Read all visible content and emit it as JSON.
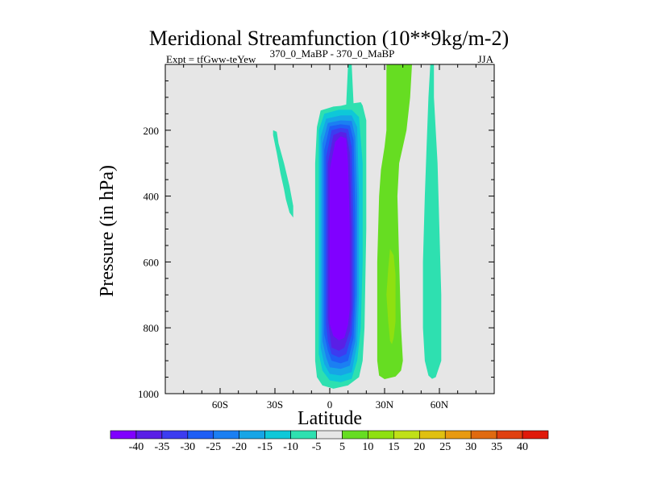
{
  "chart_data": {
    "type": "contour",
    "title": "Meridional Streamfunction (10**9kg/m-2)",
    "subtitle_left": "Expt = tfGww-teYew",
    "subtitle_center": "370_0_MaBP - 370_0_MaBP",
    "subtitle_right": "JJA",
    "xlabel": "Latitude",
    "ylabel": "Pressure (in hPa)",
    "xlim": [
      -90,
      90
    ],
    "ylim": [
      1000,
      0
    ],
    "xticks": [
      {
        "value": -60,
        "label": "60S"
      },
      {
        "value": -30,
        "label": "30S"
      },
      {
        "value": 0,
        "label": "0"
      },
      {
        "value": 30,
        "label": "30N"
      },
      {
        "value": 60,
        "label": "60N"
      }
    ],
    "yticks": [
      {
        "value": 200,
        "label": "200"
      },
      {
        "value": 400,
        "label": "400"
      },
      {
        "value": 600,
        "label": "600"
      },
      {
        "value": 800,
        "label": "800"
      },
      {
        "value": 1000,
        "label": "1000"
      }
    ],
    "background_color": "#e6e6e6",
    "colorbar": {
      "labels": [
        "-40",
        "-35",
        "-30",
        "-25",
        "-20",
        "-15",
        "-10",
        "-5",
        "5",
        "10",
        "15",
        "20",
        "25",
        "30",
        "35",
        "40"
      ],
      "colors": [
        "#8000ff",
        "#5a1fe6",
        "#3c3cf0",
        "#1e5ef5",
        "#1b7ff2",
        "#16a5e6",
        "#0ec8d8",
        "#2ee0b0",
        "#e6e6e6",
        "#66dd22",
        "#8fe010",
        "#c0e018",
        "#e0c010",
        "#e89a10",
        "#e06a10",
        "#e04010",
        "#e01a0a"
      ]
    },
    "regions": [
      {
        "name": "neg-5-strip",
        "fill": "#2ee0b0",
        "points": [
          [
            -31,
            200
          ],
          [
            -29,
            205
          ],
          [
            -28,
            240
          ],
          [
            -25,
            300
          ],
          [
            -22,
            370
          ],
          [
            -20,
            430
          ],
          [
            -20,
            465
          ],
          [
            -22,
            450
          ],
          [
            -24,
            410
          ],
          [
            -25,
            380
          ],
          [
            -27,
            330
          ],
          [
            -29,
            270
          ],
          [
            -31,
            215
          ]
        ]
      },
      {
        "name": "neg-5-main",
        "fill": "#2ee0b0",
        "points": [
          [
            -5,
            140
          ],
          [
            2,
            128
          ],
          [
            6,
            126
          ],
          [
            9,
            122
          ],
          [
            10,
            0
          ],
          [
            12,
            0
          ],
          [
            13,
            118
          ],
          [
            17,
            115
          ],
          [
            18,
            125
          ],
          [
            20,
            170
          ],
          [
            20,
            500
          ],
          [
            19,
            800
          ],
          [
            18,
            900
          ],
          [
            16,
            950
          ],
          [
            10,
            975
          ],
          [
            2,
            985
          ],
          [
            -4,
            975
          ],
          [
            -7,
            950
          ],
          [
            -8,
            900
          ],
          [
            -8,
            300
          ],
          [
            -7,
            190
          ]
        ]
      },
      {
        "name": "neg-10",
        "fill": "#0ec8d8",
        "points": [
          [
            -3,
            150
          ],
          [
            5,
            138
          ],
          [
            12,
            138
          ],
          [
            16,
            160
          ],
          [
            18,
            300
          ],
          [
            18,
            600
          ],
          [
            17,
            800
          ],
          [
            15,
            900
          ],
          [
            12,
            955
          ],
          [
            6,
            965
          ],
          [
            0,
            960
          ],
          [
            -4,
            930
          ],
          [
            -6,
            880
          ],
          [
            -6,
            200
          ]
        ]
      },
      {
        "name": "neg-15",
        "fill": "#16a5e6",
        "points": [
          [
            -2,
            165
          ],
          [
            6,
            155
          ],
          [
            12,
            155
          ],
          [
            15,
            190
          ],
          [
            16,
            400
          ],
          [
            16,
            700
          ],
          [
            15,
            850
          ],
          [
            12,
            935
          ],
          [
            6,
            945
          ],
          [
            0,
            940
          ],
          [
            -3,
            910
          ],
          [
            -5,
            860
          ],
          [
            -5,
            220
          ]
        ]
      },
      {
        "name": "neg-20",
        "fill": "#1b7ff2",
        "points": [
          [
            -1,
            178
          ],
          [
            6,
            170
          ],
          [
            12,
            172
          ],
          [
            14,
            220
          ],
          [
            15,
            400
          ],
          [
            15,
            700
          ],
          [
            14,
            840
          ],
          [
            11,
            915
          ],
          [
            6,
            925
          ],
          [
            0,
            920
          ],
          [
            -2,
            890
          ],
          [
            -4,
            840
          ],
          [
            -4,
            240
          ]
        ]
      },
      {
        "name": "neg-25",
        "fill": "#1e5ef5",
        "points": [
          [
            0,
            188
          ],
          [
            6,
            182
          ],
          [
            11,
            185
          ],
          [
            13,
            230
          ],
          [
            14,
            450
          ],
          [
            14,
            700
          ],
          [
            13,
            830
          ],
          [
            10,
            900
          ],
          [
            6,
            908
          ],
          [
            1,
            900
          ],
          [
            -1,
            870
          ],
          [
            -3,
            820
          ],
          [
            -3,
            260
          ]
        ]
      },
      {
        "name": "neg-30",
        "fill": "#3c3cf0",
        "points": [
          [
            1,
            200
          ],
          [
            6,
            193
          ],
          [
            10,
            196
          ],
          [
            12,
            250
          ],
          [
            13,
            500
          ],
          [
            13,
            720
          ],
          [
            12,
            820
          ],
          [
            9,
            880
          ],
          [
            5,
            890
          ],
          [
            1,
            880
          ],
          [
            -1,
            840
          ],
          [
            -2,
            790
          ],
          [
            -2,
            280
          ]
        ]
      },
      {
        "name": "neg-35",
        "fill": "#5a1fe6",
        "points": [
          [
            2,
            215
          ],
          [
            6,
            205
          ],
          [
            9,
            208
          ],
          [
            11,
            270
          ],
          [
            12,
            500
          ],
          [
            12,
            740
          ],
          [
            11,
            810
          ],
          [
            8,
            860
          ],
          [
            5,
            870
          ],
          [
            1,
            860
          ],
          [
            0,
            820
          ],
          [
            -1,
            770
          ],
          [
            -1,
            300
          ]
        ]
      },
      {
        "name": "neg-40",
        "fill": "#8000ff",
        "points": [
          [
            3,
            235
          ],
          [
            6,
            218
          ],
          [
            9,
            225
          ],
          [
            10,
            300
          ],
          [
            11,
            500
          ],
          [
            11,
            740
          ],
          [
            10,
            790
          ],
          [
            8,
            830
          ],
          [
            5,
            838
          ],
          [
            2,
            825
          ],
          [
            0,
            790
          ],
          [
            0,
            720
          ],
          [
            0,
            320
          ]
        ]
      },
      {
        "name": "pos-5",
        "fill": "#66dd22",
        "points": [
          [
            31,
            0
          ],
          [
            45,
            0
          ],
          [
            44,
            100
          ],
          [
            42,
            200
          ],
          [
            40,
            250
          ],
          [
            38,
            300
          ],
          [
            37,
            400
          ],
          [
            38,
            600
          ],
          [
            39,
            800
          ],
          [
            40,
            900
          ],
          [
            39,
            930
          ],
          [
            36,
            948
          ],
          [
            30,
            956
          ],
          [
            27,
            945
          ],
          [
            26,
            900
          ],
          [
            26,
            600
          ],
          [
            27,
            400
          ],
          [
            28,
            320
          ],
          [
            30,
            250
          ],
          [
            31,
            200
          ],
          [
            31,
            100
          ]
        ]
      },
      {
        "name": "pos-10",
        "fill": "#8fe010",
        "points": [
          [
            33,
            560
          ],
          [
            35,
            580
          ],
          [
            36,
            640
          ],
          [
            36,
            780
          ],
          [
            35,
            830
          ],
          [
            34,
            850
          ],
          [
            33,
            840
          ],
          [
            32,
            780
          ],
          [
            31,
            700
          ],
          [
            32,
            620
          ]
        ]
      },
      {
        "name": "neg-5-right",
        "fill": "#2ee0b0",
        "points": [
          [
            55,
            0
          ],
          [
            57,
            0
          ],
          [
            57,
            100
          ],
          [
            59,
            300
          ],
          [
            60,
            500
          ],
          [
            61,
            700
          ],
          [
            61,
            800
          ],
          [
            61,
            900
          ],
          [
            58,
            950
          ],
          [
            56,
            955
          ],
          [
            54,
            945
          ],
          [
            52,
            900
          ],
          [
            51,
            800
          ],
          [
            51,
            600
          ],
          [
            52,
            400
          ],
          [
            53,
            250
          ],
          [
            54,
            100
          ]
        ]
      }
    ]
  }
}
